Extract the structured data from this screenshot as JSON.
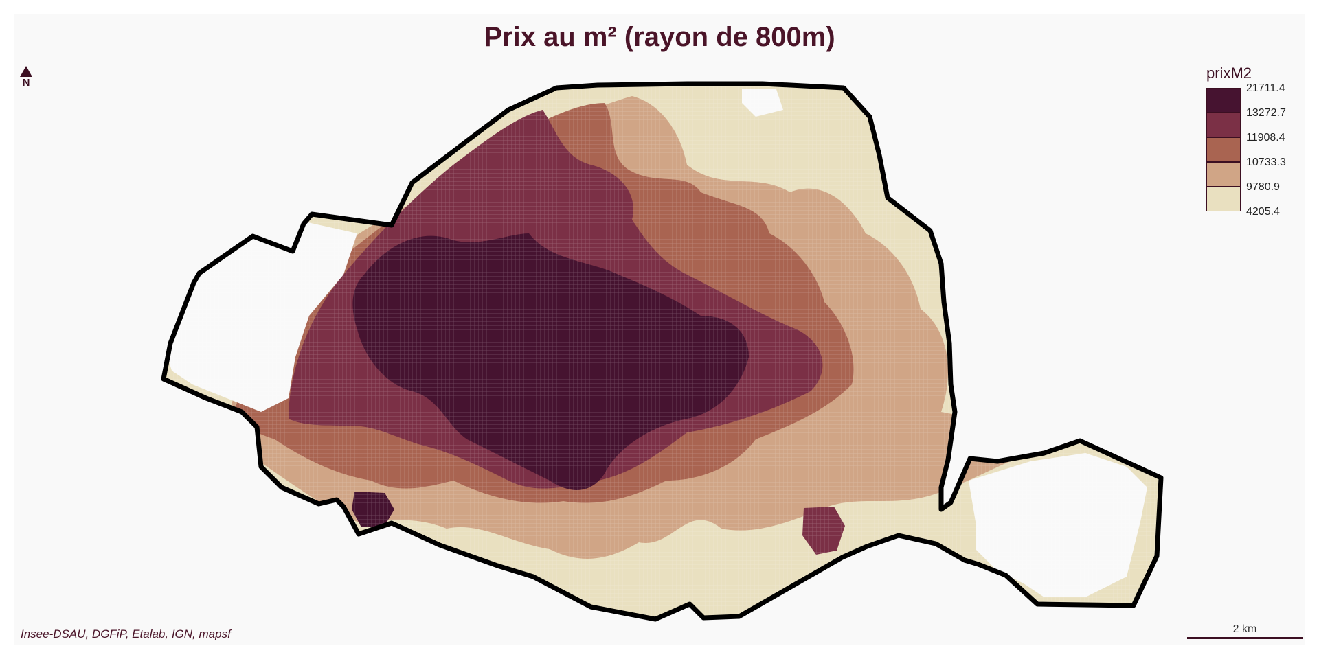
{
  "title": "Prix au m² (rayon de 800m)",
  "north_arrow": {
    "icon": "north-arrow-icon",
    "label": "N"
  },
  "legend": {
    "title": "prixM2",
    "breaks": [
      "21711.4",
      "13272.7",
      "11908.4",
      "10733.3",
      "9780.9",
      "4205.4"
    ],
    "colors": [
      "#461330",
      "#7b3046",
      "#a96451",
      "#d0a586",
      "#e9e0c0"
    ]
  },
  "source": "Insee-DSAU, DGFiP, Etalab, IGN, mapsf",
  "scale_bar": {
    "label": "2 km"
  },
  "colors": {
    "background": "#f9f9f9",
    "title": "#4a1428",
    "outline": "#000000"
  }
}
